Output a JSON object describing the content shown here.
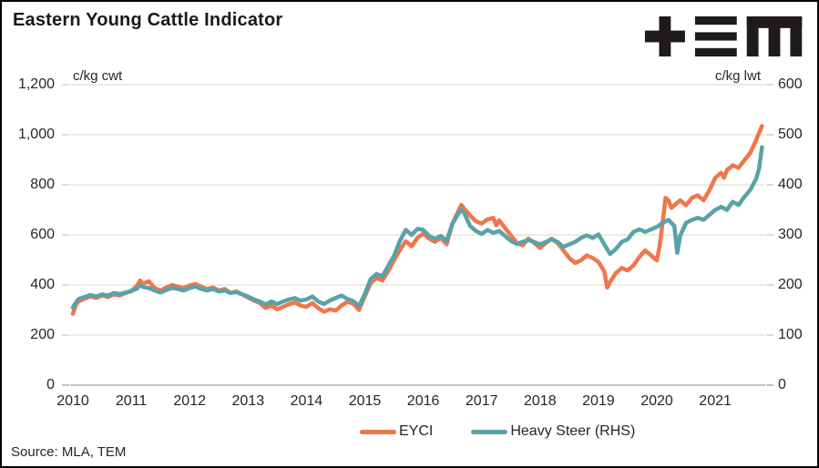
{
  "header": {
    "title": "Eastern Young Cattle Indicator",
    "logo_name": "TEM"
  },
  "footer": {
    "source": "Source: MLA, TEM"
  },
  "legend": {
    "items": [
      {
        "label": "EYCI",
        "color": "#F0764B"
      },
      {
        "label": "Heavy Steer (RHS)",
        "color": "#5AA2A9"
      }
    ]
  },
  "colors": {
    "eyci": "#F0764B",
    "heavy_steer": "#5AA2A9",
    "gridline": "#ECECDF",
    "zero_line": "#C3C3C3",
    "text": "#262626",
    "logo": "#1F1B1C"
  },
  "chart_data": {
    "type": "line",
    "title": "Eastern Young Cattle Indicator",
    "grid": "horizontal-only",
    "legend_position": "bottom",
    "left_axis": {
      "label": "c/kg cwt",
      "min": 0,
      "max": 1200,
      "step": 200,
      "tick_values": [
        1200,
        1000,
        800,
        600,
        400,
        200,
        0
      ],
      "tick_labels": [
        "1,200",
        "1,000",
        "800",
        "600",
        "400",
        "200",
        "0"
      ]
    },
    "right_axis": {
      "label": "c/kg lwt",
      "min": 0,
      "max": 600,
      "step": 100,
      "tick_values": [
        600,
        500,
        400,
        300,
        200,
        100,
        0
      ],
      "tick_labels": [
        "600",
        "500",
        "400",
        "300",
        "200",
        "100",
        "0"
      ]
    },
    "x_axis": {
      "min": 2010,
      "max": 2021.85,
      "tick_labels": [
        "2010",
        "2011",
        "2012",
        "2013",
        "2014",
        "2015",
        "2016",
        "2017",
        "2018",
        "2019",
        "2020",
        "2021"
      ]
    },
    "series": [
      {
        "name": "EYCI",
        "axis": "left",
        "units": "c/kg cwt",
        "color": "#F0764B",
        "points": [
          [
            2010.0,
            285
          ],
          [
            2010.05,
            320
          ],
          [
            2010.1,
            335
          ],
          [
            2010.2,
            345
          ],
          [
            2010.3,
            355
          ],
          [
            2010.4,
            348
          ],
          [
            2010.5,
            358
          ],
          [
            2010.6,
            352
          ],
          [
            2010.7,
            363
          ],
          [
            2010.8,
            358
          ],
          [
            2010.9,
            368
          ],
          [
            2011.0,
            375
          ],
          [
            2011.1,
            398
          ],
          [
            2011.15,
            418
          ],
          [
            2011.2,
            405
          ],
          [
            2011.3,
            415
          ],
          [
            2011.4,
            388
          ],
          [
            2011.5,
            378
          ],
          [
            2011.6,
            390
          ],
          [
            2011.7,
            400
          ],
          [
            2011.8,
            393
          ],
          [
            2011.9,
            388
          ],
          [
            2012.0,
            398
          ],
          [
            2012.1,
            404
          ],
          [
            2012.2,
            393
          ],
          [
            2012.3,
            383
          ],
          [
            2012.4,
            390
          ],
          [
            2012.5,
            378
          ],
          [
            2012.6,
            384
          ],
          [
            2012.7,
            368
          ],
          [
            2012.8,
            374
          ],
          [
            2012.9,
            362
          ],
          [
            2013.0,
            350
          ],
          [
            2013.1,
            338
          ],
          [
            2013.2,
            328
          ],
          [
            2013.3,
            308
          ],
          [
            2013.4,
            318
          ],
          [
            2013.5,
            303
          ],
          [
            2013.6,
            313
          ],
          [
            2013.7,
            323
          ],
          [
            2013.8,
            330
          ],
          [
            2013.9,
            318
          ],
          [
            2014.0,
            313
          ],
          [
            2014.1,
            328
          ],
          [
            2014.2,
            308
          ],
          [
            2014.3,
            293
          ],
          [
            2014.4,
            303
          ],
          [
            2014.5,
            298
          ],
          [
            2014.6,
            318
          ],
          [
            2014.7,
            333
          ],
          [
            2014.8,
            325
          ],
          [
            2014.9,
            300
          ],
          [
            2015.0,
            355
          ],
          [
            2015.1,
            408
          ],
          [
            2015.2,
            428
          ],
          [
            2015.3,
            418
          ],
          [
            2015.4,
            455
          ],
          [
            2015.5,
            498
          ],
          [
            2015.6,
            540
          ],
          [
            2015.7,
            575
          ],
          [
            2015.8,
            555
          ],
          [
            2015.9,
            588
          ],
          [
            2016.0,
            605
          ],
          [
            2016.1,
            585
          ],
          [
            2016.2,
            572
          ],
          [
            2016.3,
            588
          ],
          [
            2016.4,
            562
          ],
          [
            2016.5,
            645
          ],
          [
            2016.6,
            695
          ],
          [
            2016.65,
            720
          ],
          [
            2016.7,
            705
          ],
          [
            2016.8,
            678
          ],
          [
            2016.9,
            655
          ],
          [
            2017.0,
            645
          ],
          [
            2017.1,
            662
          ],
          [
            2017.2,
            668
          ],
          [
            2017.25,
            638
          ],
          [
            2017.3,
            658
          ],
          [
            2017.4,
            628
          ],
          [
            2017.5,
            598
          ],
          [
            2017.6,
            568
          ],
          [
            2017.7,
            558
          ],
          [
            2017.8,
            585
          ],
          [
            2017.9,
            568
          ],
          [
            2018.0,
            548
          ],
          [
            2018.1,
            568
          ],
          [
            2018.2,
            585
          ],
          [
            2018.3,
            568
          ],
          [
            2018.4,
            538
          ],
          [
            2018.5,
            508
          ],
          [
            2018.6,
            488
          ],
          [
            2018.7,
            498
          ],
          [
            2018.8,
            518
          ],
          [
            2018.9,
            508
          ],
          [
            2019.0,
            492
          ],
          [
            2019.1,
            455
          ],
          [
            2019.15,
            390
          ],
          [
            2019.2,
            412
          ],
          [
            2019.3,
            448
          ],
          [
            2019.4,
            468
          ],
          [
            2019.5,
            458
          ],
          [
            2019.6,
            478
          ],
          [
            2019.7,
            512
          ],
          [
            2019.8,
            538
          ],
          [
            2019.9,
            518
          ],
          [
            2020.0,
            498
          ],
          [
            2020.05,
            558
          ],
          [
            2020.1,
            652
          ],
          [
            2020.15,
            748
          ],
          [
            2020.2,
            738
          ],
          [
            2020.25,
            708
          ],
          [
            2020.3,
            718
          ],
          [
            2020.4,
            738
          ],
          [
            2020.5,
            718
          ],
          [
            2020.6,
            748
          ],
          [
            2020.7,
            758
          ],
          [
            2020.8,
            738
          ],
          [
            2020.9,
            778
          ],
          [
            2021.0,
            828
          ],
          [
            2021.1,
            848
          ],
          [
            2021.15,
            828
          ],
          [
            2021.2,
            858
          ],
          [
            2021.3,
            878
          ],
          [
            2021.4,
            868
          ],
          [
            2021.5,
            898
          ],
          [
            2021.6,
            928
          ],
          [
            2021.7,
            978
          ],
          [
            2021.75,
            1008
          ],
          [
            2021.8,
            1035
          ]
        ]
      },
      {
        "name": "Heavy Steer (RHS)",
        "axis": "right",
        "units": "c/kg lwt",
        "color": "#5AA2A9",
        "points": [
          [
            2010.0,
            155
          ],
          [
            2010.05,
            165
          ],
          [
            2010.1,
            172
          ],
          [
            2010.2,
            176
          ],
          [
            2010.3,
            180
          ],
          [
            2010.4,
            177
          ],
          [
            2010.5,
            181
          ],
          [
            2010.6,
            179
          ],
          [
            2010.7,
            184
          ],
          [
            2010.8,
            182
          ],
          [
            2010.9,
            185
          ],
          [
            2011.0,
            188
          ],
          [
            2011.1,
            193
          ],
          [
            2011.15,
            200
          ],
          [
            2011.2,
            196
          ],
          [
            2011.3,
            194
          ],
          [
            2011.4,
            189
          ],
          [
            2011.5,
            185
          ],
          [
            2011.6,
            190
          ],
          [
            2011.7,
            194
          ],
          [
            2011.8,
            192
          ],
          [
            2011.9,
            189
          ],
          [
            2012.0,
            194
          ],
          [
            2012.1,
            197
          ],
          [
            2012.2,
            192
          ],
          [
            2012.3,
            189
          ],
          [
            2012.4,
            192
          ],
          [
            2012.5,
            187
          ],
          [
            2012.6,
            189
          ],
          [
            2012.7,
            184
          ],
          [
            2012.8,
            186
          ],
          [
            2012.9,
            181
          ],
          [
            2013.0,
            177
          ],
          [
            2013.1,
            171
          ],
          [
            2013.2,
            167
          ],
          [
            2013.3,
            161
          ],
          [
            2013.4,
            167
          ],
          [
            2013.5,
            162
          ],
          [
            2013.6,
            167
          ],
          [
            2013.7,
            171
          ],
          [
            2013.8,
            174
          ],
          [
            2013.9,
            169
          ],
          [
            2014.0,
            171
          ],
          [
            2014.1,
            177
          ],
          [
            2014.2,
            167
          ],
          [
            2014.3,
            162
          ],
          [
            2014.4,
            169
          ],
          [
            2014.5,
            174
          ],
          [
            2014.6,
            179
          ],
          [
            2014.7,
            172
          ],
          [
            2014.8,
            168
          ],
          [
            2014.9,
            158
          ],
          [
            2015.0,
            182
          ],
          [
            2015.1,
            212
          ],
          [
            2015.2,
            222
          ],
          [
            2015.3,
            217
          ],
          [
            2015.4,
            238
          ],
          [
            2015.5,
            258
          ],
          [
            2015.6,
            288
          ],
          [
            2015.7,
            310
          ],
          [
            2015.8,
            300
          ],
          [
            2015.9,
            312
          ],
          [
            2016.0,
            310
          ],
          [
            2016.1,
            298
          ],
          [
            2016.2,
            292
          ],
          [
            2016.3,
            298
          ],
          [
            2016.4,
            288
          ],
          [
            2016.5,
            322
          ],
          [
            2016.6,
            342
          ],
          [
            2016.65,
            350
          ],
          [
            2016.7,
            344
          ],
          [
            2016.8,
            318
          ],
          [
            2016.9,
            308
          ],
          [
            2017.0,
            302
          ],
          [
            2017.1,
            310
          ],
          [
            2017.2,
            304
          ],
          [
            2017.3,
            308
          ],
          [
            2017.4,
            298
          ],
          [
            2017.5,
            288
          ],
          [
            2017.6,
            282
          ],
          [
            2017.7,
            286
          ],
          [
            2017.8,
            290
          ],
          [
            2017.9,
            286
          ],
          [
            2018.0,
            281
          ],
          [
            2018.1,
            286
          ],
          [
            2018.2,
            291
          ],
          [
            2018.3,
            286
          ],
          [
            2018.4,
            276
          ],
          [
            2018.5,
            281
          ],
          [
            2018.6,
            286
          ],
          [
            2018.7,
            294
          ],
          [
            2018.8,
            299
          ],
          [
            2018.9,
            294
          ],
          [
            2019.0,
            301
          ],
          [
            2019.1,
            281
          ],
          [
            2019.2,
            262
          ],
          [
            2019.3,
            272
          ],
          [
            2019.4,
            286
          ],
          [
            2019.5,
            291
          ],
          [
            2019.6,
            306
          ],
          [
            2019.7,
            311
          ],
          [
            2019.8,
            306
          ],
          [
            2019.9,
            311
          ],
          [
            2020.0,
            316
          ],
          [
            2020.1,
            324
          ],
          [
            2020.2,
            330
          ],
          [
            2020.3,
            318
          ],
          [
            2020.35,
            264
          ],
          [
            2020.4,
            298
          ],
          [
            2020.5,
            324
          ],
          [
            2020.6,
            330
          ],
          [
            2020.7,
            334
          ],
          [
            2020.8,
            330
          ],
          [
            2020.9,
            340
          ],
          [
            2021.0,
            350
          ],
          [
            2021.1,
            356
          ],
          [
            2021.2,
            350
          ],
          [
            2021.3,
            366
          ],
          [
            2021.4,
            360
          ],
          [
            2021.5,
            376
          ],
          [
            2021.6,
            390
          ],
          [
            2021.7,
            412
          ],
          [
            2021.75,
            432
          ],
          [
            2021.8,
            475
          ]
        ]
      }
    ]
  }
}
